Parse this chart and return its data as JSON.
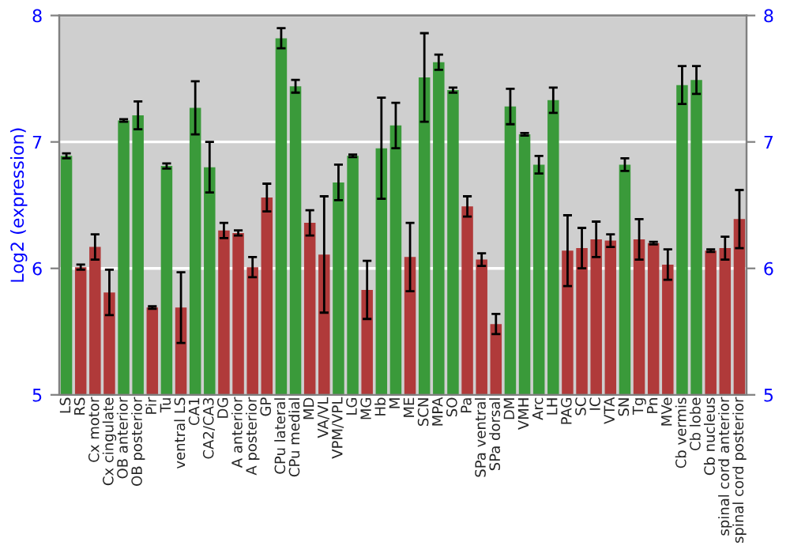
{
  "chart_data": {
    "type": "bar",
    "ylabel": "Log2 (expression)",
    "categories": [
      "LS",
      "RS",
      "Cx motor",
      "Cx cingulate",
      "OB anterior",
      "OB posterior",
      "Pir",
      "Tu",
      "ventral LS",
      "CA1",
      "CA2/CA3",
      "DG",
      "A anterior",
      "A posterior",
      "GP",
      "CPu lateral",
      "CPu medial",
      "MD",
      "VA/VL",
      "VPM/VPL",
      "LG",
      "MG",
      "Hb",
      "M",
      "ME",
      "SCN",
      "MPA",
      "SO",
      "Pa",
      "SPa ventral",
      "SPa dorsal",
      "DM",
      "VMH",
      "Arc",
      "LH",
      "PAG",
      "SC",
      "IC",
      "VTA",
      "SN",
      "Tg",
      "Pn",
      "MVe",
      "Cb vermis",
      "Cb lobe",
      "Cb nucleus",
      "spinal cord anterior",
      "spinal cord posterior"
    ],
    "values": [
      6.89,
      6.01,
      6.17,
      5.81,
      7.17,
      7.21,
      5.69,
      6.81,
      5.69,
      7.27,
      6.8,
      6.3,
      6.28,
      6.01,
      6.56,
      7.82,
      7.44,
      6.36,
      6.11,
      6.68,
      6.89,
      5.83,
      6.95,
      7.13,
      6.09,
      7.51,
      7.63,
      7.41,
      6.49,
      6.07,
      5.56,
      7.28,
      7.06,
      6.82,
      7.33,
      6.14,
      6.16,
      6.23,
      6.22,
      6.82,
      6.23,
      6.2,
      6.03,
      7.45,
      7.49,
      6.14,
      6.16,
      6.39
    ],
    "errors": [
      0.02,
      0.02,
      0.1,
      0.18,
      0.01,
      0.11,
      0.01,
      0.02,
      0.28,
      0.21,
      0.2,
      0.06,
      0.02,
      0.08,
      0.11,
      0.08,
      0.05,
      0.1,
      0.46,
      0.14,
      0.01,
      0.23,
      0.4,
      0.18,
      0.27,
      0.35,
      0.06,
      0.02,
      0.08,
      0.05,
      0.08,
      0.14,
      0.01,
      0.07,
      0.1,
      0.28,
      0.16,
      0.14,
      0.05,
      0.05,
      0.16,
      0.01,
      0.12,
      0.15,
      0.11,
      0.01,
      0.09,
      0.23
    ],
    "colors": [
      "#3a9a3a",
      "#b03a3a",
      "#b03a3a",
      "#b03a3a",
      "#3a9a3a",
      "#3a9a3a",
      "#b03a3a",
      "#3a9a3a",
      "#b03a3a",
      "#3a9a3a",
      "#3a9a3a",
      "#b03a3a",
      "#b03a3a",
      "#b03a3a",
      "#b03a3a",
      "#3a9a3a",
      "#3a9a3a",
      "#b03a3a",
      "#b03a3a",
      "#3a9a3a",
      "#3a9a3a",
      "#b03a3a",
      "#3a9a3a",
      "#3a9a3a",
      "#b03a3a",
      "#3a9a3a",
      "#3a9a3a",
      "#3a9a3a",
      "#b03a3a",
      "#b03a3a",
      "#b03a3a",
      "#3a9a3a",
      "#3a9a3a",
      "#3a9a3a",
      "#3a9a3a",
      "#b03a3a",
      "#b03a3a",
      "#b03a3a",
      "#b03a3a",
      "#3a9a3a",
      "#b03a3a",
      "#b03a3a",
      "#b03a3a",
      "#3a9a3a",
      "#3a9a3a",
      "#b03a3a",
      "#b03a3a",
      "#b03a3a"
    ],
    "ylim": [
      5,
      8
    ],
    "yticks": [
      5,
      6,
      7,
      8
    ],
    "y2lim": [
      5,
      8
    ],
    "y2ticks": [
      5,
      6,
      7,
      8
    ],
    "grid": "y"
  }
}
